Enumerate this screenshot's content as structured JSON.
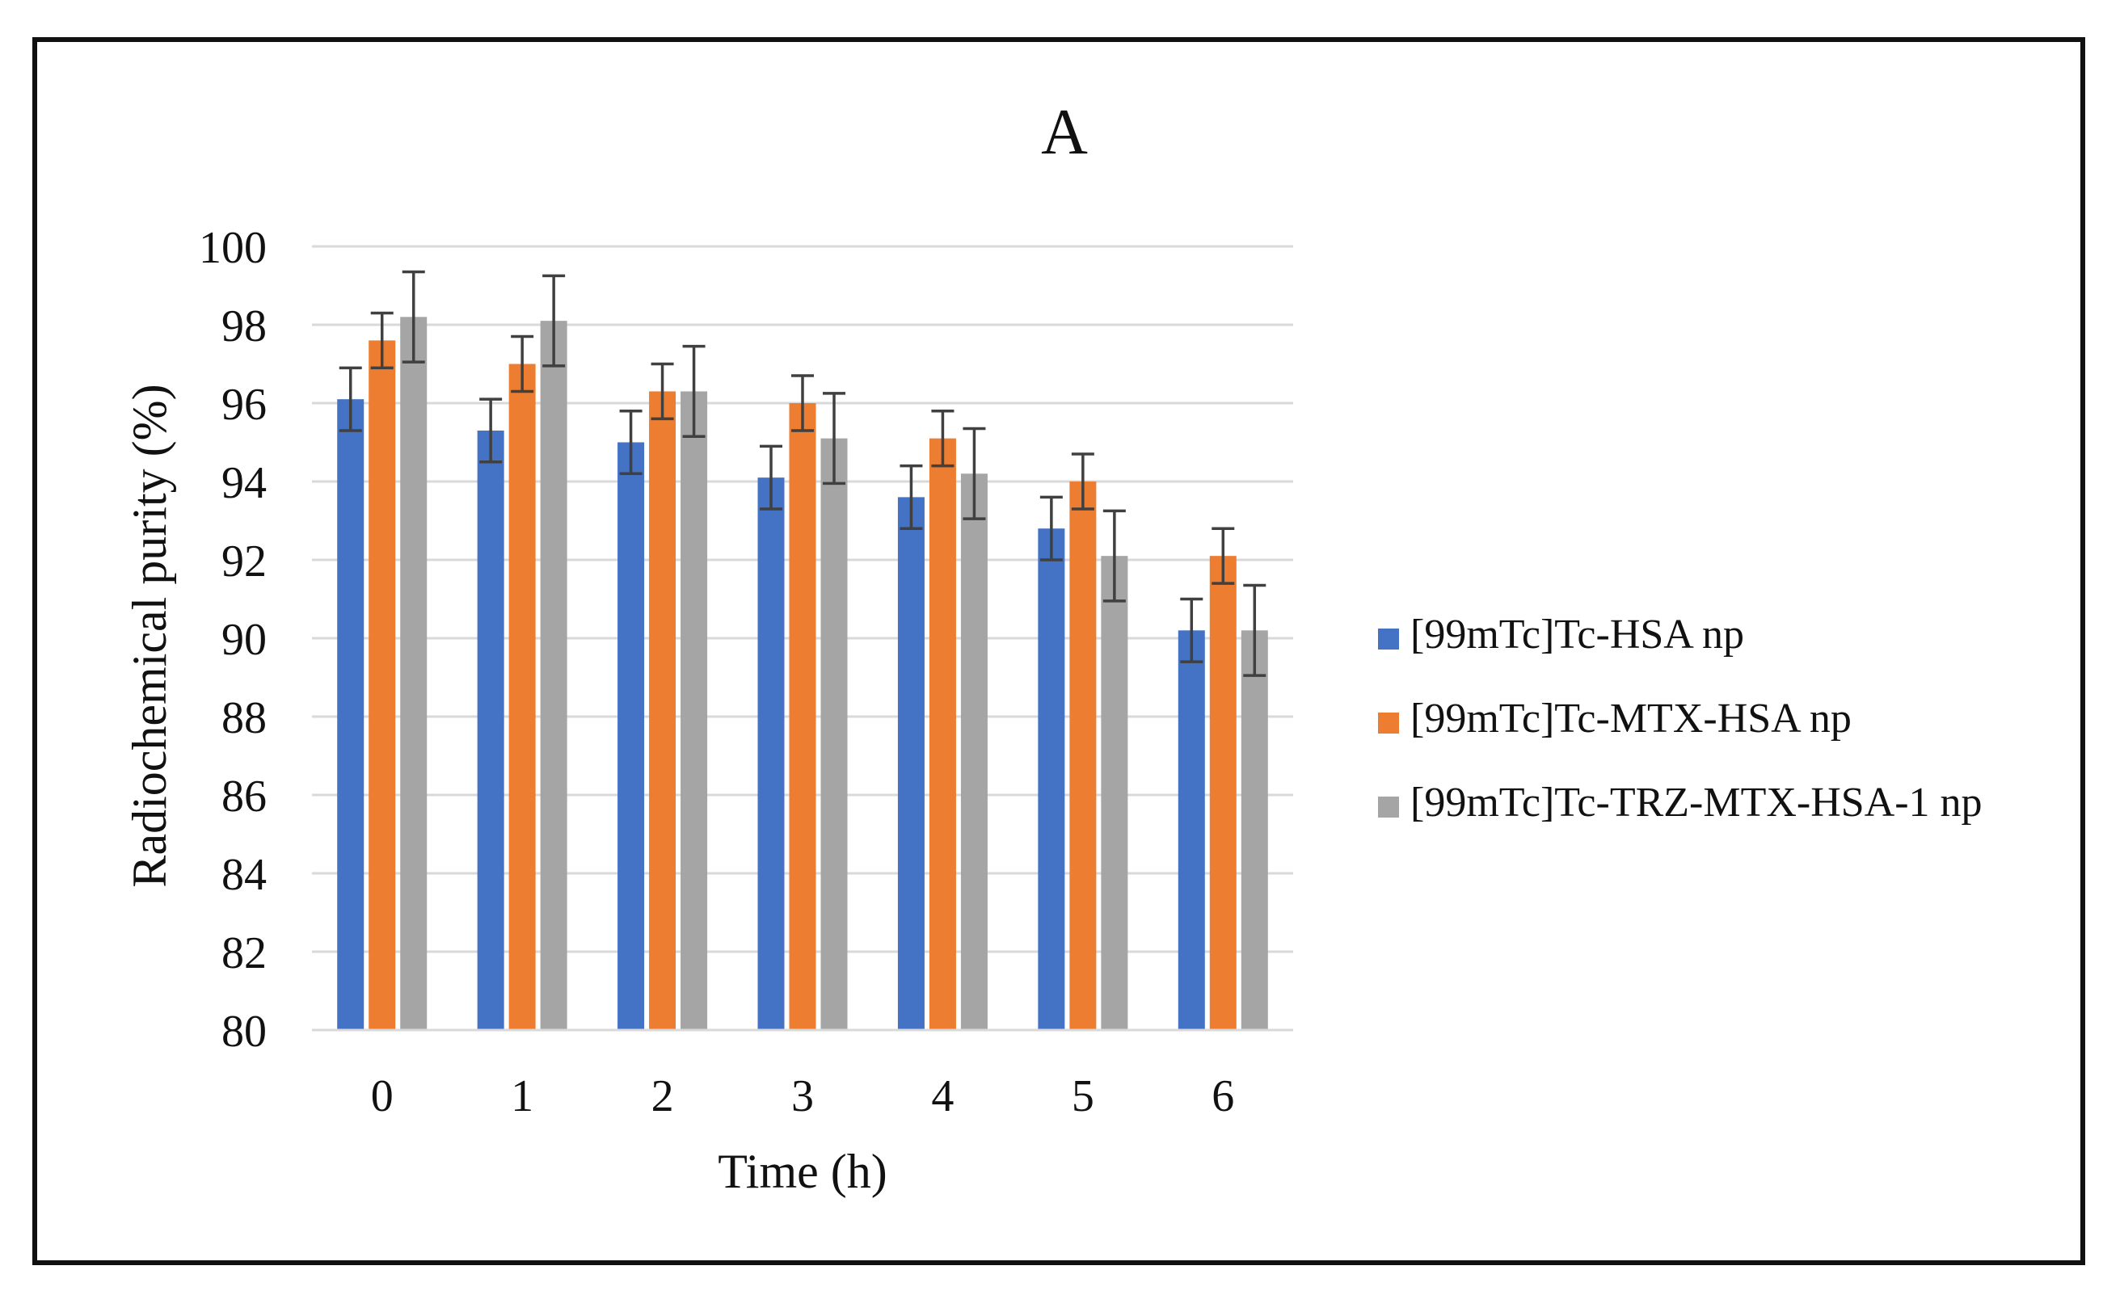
{
  "chart_data": {
    "type": "bar",
    "title": "A",
    "xlabel": "Time (h)",
    "ylabel": "Radiochemical purity (%)",
    "ylim": [
      80,
      100
    ],
    "yticks": [
      80,
      82,
      84,
      86,
      88,
      90,
      92,
      94,
      96,
      98,
      100
    ],
    "categories": [
      "0",
      "1",
      "2",
      "3",
      "4",
      "5",
      "6"
    ],
    "grid": true,
    "legend_position": "right",
    "series": [
      {
        "name": "[99mTc]Tc-HSA np",
        "color": "#4472C4",
        "values": [
          96.1,
          95.3,
          95.0,
          94.1,
          93.6,
          92.8,
          90.2
        ],
        "errors": [
          0.8,
          0.8,
          0.8,
          0.8,
          0.8,
          0.8,
          0.8
        ]
      },
      {
        "name": "[99mTc]Tc-MTX-HSA np",
        "color": "#ED7D31",
        "values": [
          97.6,
          97.0,
          96.3,
          96.0,
          95.1,
          94.0,
          92.1
        ],
        "errors": [
          0.7,
          0.7,
          0.7,
          0.7,
          0.7,
          0.7,
          0.7
        ]
      },
      {
        "name": "[99mTc]Tc-TRZ-MTX-HSA-1 np",
        "color": "#A5A5A5",
        "values": [
          98.2,
          98.1,
          96.3,
          95.1,
          94.2,
          92.1,
          90.2
        ],
        "errors": [
          1.15,
          1.15,
          1.15,
          1.15,
          1.15,
          1.15,
          1.15
        ]
      }
    ]
  }
}
